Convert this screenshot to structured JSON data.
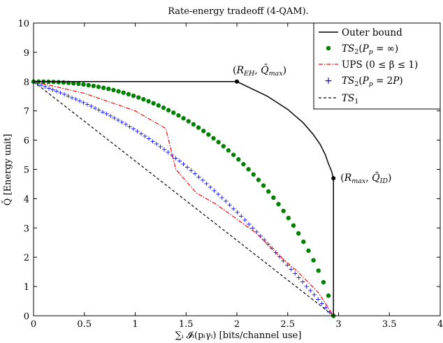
{
  "chart_data": {
    "type": "line",
    "title": "Rate-energy tradeoff (4-QAM).",
    "xlabel": "∑ᵢ 𝓘ᵢ(pᵢγᵢ) [bits/channel use]",
    "ylabel": "Q̄ [Energy unit]",
    "xlim": [
      0,
      4
    ],
    "ylim": [
      0,
      10
    ],
    "xticks": [
      0,
      0.5,
      1,
      1.5,
      2,
      2.5,
      3,
      3.5,
      4
    ],
    "xtick_labels": [
      "0",
      "0.5",
      "1",
      "1.5",
      "2",
      "2.5",
      "3",
      "3.5",
      "4"
    ],
    "yticks": [
      0,
      1,
      2,
      3,
      4,
      5,
      6,
      7,
      8,
      9,
      10
    ],
    "ytick_labels": [
      "0",
      "1",
      "2",
      "3",
      "4",
      "5",
      "6",
      "7",
      "8",
      "9",
      "10"
    ],
    "grid": false,
    "legend_position": "top-right",
    "series": [
      {
        "name": "Outer bound",
        "style": "solid-line",
        "color": "#000000",
        "x": [
          0,
          2.0,
          2.3,
          2.5,
          2.65,
          2.75,
          2.82,
          2.87,
          2.9,
          2.93,
          2.95,
          2.95
        ],
        "y": [
          8,
          8,
          7.5,
          7.05,
          6.6,
          6.2,
          5.85,
          5.5,
          5.2,
          4.95,
          4.7,
          0
        ]
      },
      {
        "name": "TS2(Pp = ∞)",
        "style": "dots",
        "color": "#008000",
        "x": [
          0,
          2.95
        ],
        "y": [
          8,
          0
        ],
        "curve": "concave"
      },
      {
        "name": "UPS (0 ≤ β ≤ 1)",
        "style": "dash-dot",
        "color": "#ff0000",
        "x": [
          0,
          0.5,
          1.0,
          1.3,
          1.4,
          1.6,
          1.8,
          2.0,
          2.2,
          2.4,
          2.6,
          2.8,
          2.95
        ],
        "y": [
          8,
          7.6,
          7.0,
          6.4,
          5.0,
          4.2,
          3.8,
          3.3,
          2.8,
          2.1,
          1.5,
          0.8,
          0
        ]
      },
      {
        "name": "TS2(Pp = 2P)",
        "style": "plus",
        "color": "#0000ff",
        "x": [
          0,
          2.95
        ],
        "y": [
          8,
          0
        ],
        "curve": "slight-concave"
      },
      {
        "name": "TS1",
        "style": "dashed",
        "color": "#000000",
        "x": [
          0,
          2.95
        ],
        "y": [
          8,
          0
        ]
      }
    ],
    "annotations": [
      {
        "label": "(R_EH, Q̄_max)",
        "x": 2.0,
        "y": 8.0
      },
      {
        "label": "(R_max, Q̄_ID)",
        "x": 2.95,
        "y": 4.7
      }
    ]
  }
}
